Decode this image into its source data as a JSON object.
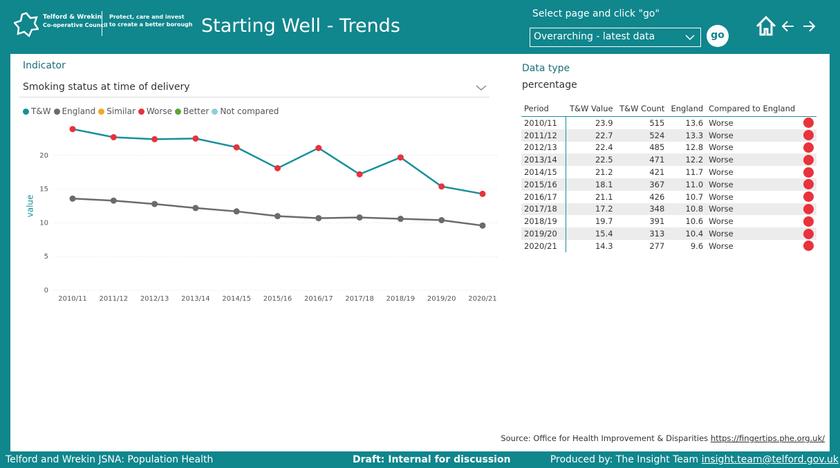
{
  "header": {
    "logo_line1": "Telford & Wrekin",
    "logo_line2": "Co-operative Council",
    "tagline1": "Protect, care and invest",
    "tagline2": "to create a better borough",
    "title": "Starting Well - Trends",
    "select_label": "Select page and click \"go\"",
    "select_value": "Overarching - latest data",
    "go": "go"
  },
  "indicator": {
    "label": "Indicator",
    "value": "Smoking status at time of delivery"
  },
  "chart_data": {
    "type": "line",
    "y_label": "value",
    "categories": [
      "2010/11",
      "2011/12",
      "2012/13",
      "2013/14",
      "2014/15",
      "2015/16",
      "2016/17",
      "2017/18",
      "2018/19",
      "2019/20",
      "2020/21"
    ],
    "series": [
      {
        "name": "T&W",
        "color": "#17909a",
        "marker_color": "#e8323c",
        "values": [
          23.9,
          22.7,
          22.4,
          22.5,
          21.2,
          18.1,
          21.1,
          17.2,
          19.7,
          15.4,
          14.3
        ]
      },
      {
        "name": "England",
        "color": "#6b6b6b",
        "marker_color": "#6b6b6b",
        "values": [
          13.6,
          13.3,
          12.8,
          12.2,
          11.7,
          11.0,
          10.7,
          10.8,
          10.6,
          10.4,
          9.6
        ]
      }
    ],
    "legend_extra": [
      {
        "name": "Similar",
        "color": "#f5a623"
      },
      {
        "name": "Worse",
        "color": "#e8323c"
      },
      {
        "name": "Better",
        "color": "#5aa632"
      },
      {
        "name": "Not compared",
        "color": "#8ecfd6"
      }
    ],
    "ylim": [
      0,
      25
    ],
    "yticks": [
      0,
      5,
      10,
      15,
      20
    ],
    "grid": true
  },
  "data_type": {
    "label": "Data type",
    "value": "percentage"
  },
  "table": {
    "columns": [
      "Period",
      "T&W Value",
      "T&W Count",
      "England",
      "Compared to England"
    ],
    "rows": [
      [
        "2010/11",
        23.9,
        515,
        13.6,
        "Worse"
      ],
      [
        "2011/12",
        22.7,
        524,
        13.3,
        "Worse"
      ],
      [
        "2012/13",
        22.4,
        485,
        12.8,
        "Worse"
      ],
      [
        "2013/14",
        22.5,
        471,
        12.2,
        "Worse"
      ],
      [
        "2014/15",
        21.2,
        421,
        11.7,
        "Worse"
      ],
      [
        "2015/16",
        18.1,
        367,
        "11.0",
        "Worse"
      ],
      [
        "2016/17",
        21.1,
        426,
        10.7,
        "Worse"
      ],
      [
        "2017/18",
        17.2,
        348,
        10.8,
        "Worse"
      ],
      [
        "2018/19",
        19.7,
        391,
        10.6,
        "Worse"
      ],
      [
        "2019/20",
        15.4,
        313,
        10.4,
        "Worse"
      ],
      [
        "2020/21",
        14.3,
        277,
        9.6,
        "Worse"
      ]
    ]
  },
  "source": {
    "text": "Source: Office for Health Improvement & Disparities",
    "link": "https://fingertips.phe.org.uk/"
  },
  "footer": {
    "left": "Telford and Wrekin JSNA: Population Health",
    "center": "Draft: Internal for discussion",
    "right": "Produced by: The Insight Team",
    "email": "insight.team@telford.gov.uk"
  }
}
